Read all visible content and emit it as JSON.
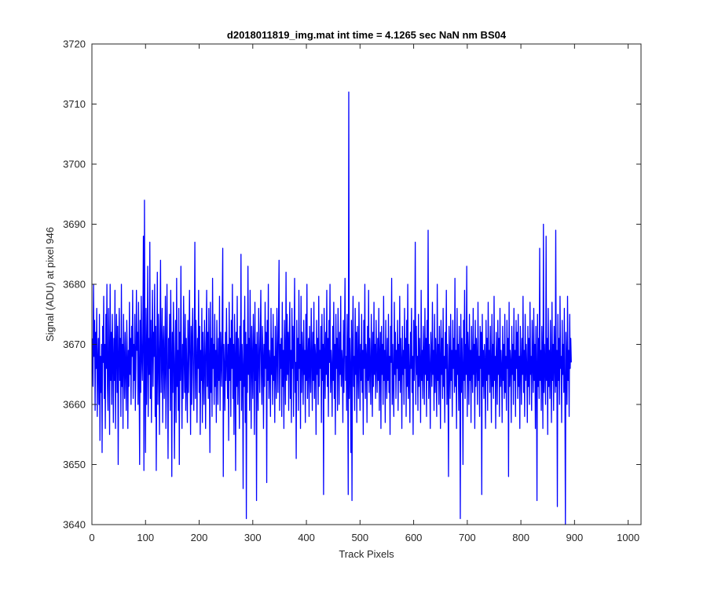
{
  "chart_data": {
    "type": "line",
    "title": "d2018011819_img.mat int time = 4.1265 sec  NaN nm BS04",
    "xlabel": "Track Pixels",
    "ylabel": "Signal (ADU) at pixel 946",
    "xlim": [
      0,
      1024
    ],
    "ylim": [
      3640,
      3720
    ],
    "xticks": [
      0,
      100,
      200,
      300,
      400,
      500,
      600,
      700,
      800,
      900,
      1000
    ],
    "yticks": [
      3640,
      3650,
      3660,
      3670,
      3680,
      3690,
      3700,
      3710,
      3720
    ],
    "grid": false,
    "line_color": "#0000ff",
    "series": [
      {
        "x_start": 1,
        "x_step": 1,
        "values_note_free": true,
        "values": [
          3671,
          3663,
          3680,
          3668,
          3674,
          3659,
          3672,
          3666,
          3676,
          3658,
          3667,
          3671,
          3660,
          3675,
          3654,
          3668,
          3662,
          3670,
          3652,
          3673,
          3667,
          3678,
          3661,
          3670,
          3656,
          3675,
          3666,
          3680,
          3663,
          3659,
          3676,
          3668,
          3655,
          3680,
          3664,
          3672,
          3660,
          3675,
          3668,
          3657,
          3671,
          3664,
          3679,
          3656,
          3669,
          3675,
          3662,
          3673,
          3650,
          3668,
          3676,
          3664,
          3671,
          3658,
          3680,
          3663,
          3670,
          3656,
          3675,
          3667,
          3661,
          3672,
          3666,
          3659,
          3674,
          3668,
          3656,
          3669,
          3663,
          3677,
          3665,
          3671,
          3660,
          3673,
          3668,
          3679,
          3661,
          3670,
          3664,
          3675,
          3659,
          3666,
          3679,
          3669,
          3672,
          3660,
          3677,
          3666,
          3650,
          3674,
          3662,
          3678,
          3668,
          3664,
          3672,
          3688,
          3649,
          3694,
          3666,
          3652,
          3676,
          3660,
          3669,
          3683,
          3658,
          3671,
          3665,
          3687,
          3661,
          3674,
          3657,
          3670,
          3679,
          3663,
          3672,
          3668,
          3680,
          3658,
          3673,
          3649,
          3666,
          3682,
          3660,
          3675,
          3669,
          3655,
          3671,
          3684,
          3662,
          3668,
          3676,
          3657,
          3670,
          3673,
          3661,
          3667,
          3678,
          3656,
          3668,
          3680,
          3664,
          3651,
          3671,
          3666,
          3675,
          3659,
          3679,
          3668,
          3648,
          3672,
          3662,
          3677,
          3668,
          3651,
          3667,
          3674,
          3657,
          3681,
          3663,
          3669,
          3659,
          3676,
          3650,
          3672,
          3664,
          3683,
          3666,
          3656,
          3670,
          3661,
          3678,
          3668,
          3662,
          3675,
          3659,
          3671,
          3665,
          3657,
          3674,
          3662,
          3669,
          3679,
          3667,
          3655,
          3673,
          3660,
          3671,
          3676,
          3665,
          3659,
          3670,
          3687,
          3661,
          3674,
          3668,
          3657,
          3671,
          3666,
          3679,
          3662,
          3673,
          3655,
          3669,
          3664,
          3676,
          3657,
          3672,
          3666,
          3660,
          3674,
          3668,
          3656,
          3670,
          3679,
          3663,
          3672,
          3661,
          3676,
          3666,
          3652,
          3677,
          3662,
          3671,
          3658,
          3681,
          3666,
          3670,
          3660,
          3675,
          3663,
          3669,
          3657,
          3674,
          3667,
          3660,
          3671,
          3664,
          3678,
          3659,
          3672,
          3668,
          3663,
          3675,
          3686,
          3648,
          3670,
          3666,
          3659,
          3672,
          3664,
          3676,
          3667,
          3661,
          3670,
          3654,
          3677,
          3664,
          3671,
          3658,
          3674,
          3666,
          3680,
          3661,
          3670,
          3655,
          3675,
          3668,
          3649,
          3672,
          3663,
          3678,
          3660,
          3671,
          3667,
          3656,
          3673,
          3664,
          3685,
          3659,
          3670,
          3666,
          3646,
          3674,
          3663,
          3678,
          3657,
          3672,
          3641,
          3670,
          3662,
          3683,
          3665,
          3671,
          3659,
          3679,
          3668,
          3656,
          3673,
          3667,
          3661,
          3675,
          3669,
          3655,
          3677,
          3664,
          3670,
          3644,
          3672,
          3666,
          3659,
          3676,
          3668,
          3662,
          3671,
          3679,
          3665,
          3660,
          3673,
          3668,
          3656,
          3670,
          3663,
          3677,
          3666,
          3672,
          3647,
          3674,
          3664,
          3680,
          3661,
          3669,
          3667,
          3658,
          3676,
          3665,
          3671,
          3660,
          3675,
          3664,
          3668,
          3657,
          3673,
          3666,
          3661,
          3676,
          3668,
          3662,
          3674,
          3684,
          3659,
          3670,
          3666,
          3671,
          3658,
          3677,
          3663,
          3669,
          3656,
          3674,
          3668,
          3660,
          3682,
          3664,
          3675,
          3665,
          3672,
          3659,
          3671,
          3677,
          3661,
          3669,
          3657,
          3676,
          3666,
          3673,
          3658,
          3670,
          3681,
          3662,
          3667,
          3651,
          3674,
          3664,
          3671,
          3659,
          3679,
          3666,
          3670,
          3656,
          3678,
          3662,
          3672,
          3668,
          3660,
          3674,
          3665,
          3669,
          3657,
          3675,
          3664,
          3680,
          3661,
          3667,
          3671,
          3658,
          3673,
          3666,
          3662,
          3676,
          3668,
          3659,
          3672,
          3664,
          3677,
          3661,
          3670,
          3668,
          3655,
          3674,
          3665,
          3671,
          3660,
          3678,
          3663,
          3669,
          3666,
          3673,
          3657,
          3675,
          3664,
          3670,
          3645,
          3676,
          3668,
          3661,
          3672,
          3665,
          3679,
          3663,
          3671,
          3658,
          3674,
          3667,
          3680,
          3662,
          3669,
          3666,
          3658,
          3673,
          3664,
          3677,
          3661,
          3670,
          3655,
          3675,
          3666,
          3671,
          3659,
          3676,
          3668,
          3660,
          3672,
          3665,
          3678,
          3663,
          3669,
          3667,
          3657,
          3674,
          3662,
          3670,
          3681,
          3664,
          3668,
          3659,
          3675,
          3666,
          3645,
          3712,
          3661,
          3671,
          3666,
          3652,
          3674,
          3644,
          3670,
          3678,
          3663,
          3668,
          3659,
          3676,
          3665,
          3672,
          3657,
          3673,
          3666,
          3661,
          3677,
          3668,
          3659,
          3670,
          3664,
          3675,
          3662,
          3669,
          3655,
          3674,
          3666,
          3680,
          3661,
          3670,
          3668,
          3657,
          3673,
          3664,
          3679,
          3662,
          3671,
          3666,
          3660,
          3675,
          3668,
          3658,
          3672,
          3663,
          3677,
          3665,
          3670,
          3661,
          3674,
          3667,
          3662,
          3671,
          3664,
          3676,
          3659,
          3668,
          3672,
          3656,
          3673,
          3665,
          3670,
          3660,
          3678,
          3664,
          3669,
          3657,
          3674,
          3666,
          3661,
          3671,
          3664,
          3675,
          3662,
          3668,
          3655,
          3673,
          3667,
          3681,
          3660,
          3670,
          3664,
          3658,
          3677,
          3665,
          3672,
          3661,
          3669,
          3666,
          3674,
          3659,
          3670,
          3664,
          3678,
          3662,
          3671,
          3667,
          3656,
          3673,
          3665,
          3669,
          3660,
          3676,
          3666,
          3671,
          3658,
          3674,
          3663,
          3680,
          3661,
          3670,
          3665,
          3657,
          3672,
          3666,
          3676,
          3662,
          3668,
          3655,
          3674,
          3664,
          3670,
          3687,
          3660,
          3673,
          3665,
          3668,
          3659,
          3675,
          3663,
          3671,
          3666,
          3657,
          3679,
          3664,
          3669,
          3661,
          3673,
          3667,
          3660,
          3676,
          3665,
          3671,
          3658,
          3674,
          3664,
          3689,
          3661,
          3670,
          3666,
          3656,
          3672,
          3668,
          3663,
          3677,
          3665,
          3669,
          3659,
          3675,
          3662,
          3671,
          3666,
          3658,
          3680,
          3664,
          3670,
          3660,
          3673,
          3667,
          3656,
          3674,
          3665,
          3671,
          3661,
          3676,
          3663,
          3668,
          3657,
          3672,
          3666,
          3679,
          3660,
          3670,
          3664,
          3648,
          3673,
          3667,
          3661,
          3675,
          3664,
          3669,
          3658,
          3674,
          3666,
          3671,
          3662,
          3681,
          3663,
          3669,
          3656,
          3676,
          3665,
          3670,
          3659,
          3673,
          3667,
          3641,
          3675,
          3662,
          3671,
          3666,
          3650,
          3674,
          3664,
          3679,
          3661,
          3670,
          3665,
          3683,
          3658,
          3672,
          3668,
          3660,
          3675,
          3664,
          3669,
          3657,
          3673,
          3666,
          3662,
          3676,
          3665,
          3670,
          3656,
          3674,
          3663,
          3671,
          3667,
          3660,
          3677,
          3664,
          3668,
          3658,
          3673,
          3666,
          3672,
          3645,
          3675,
          3663,
          3669,
          3661,
          3670,
          3667,
          3656,
          3674,
          3664,
          3671,
          3659,
          3677,
          3665,
          3669,
          3662,
          3673,
          3666,
          3657,
          3675,
          3663,
          3670,
          3661,
          3678,
          3664,
          3668,
          3656,
          3672,
          3667,
          3660,
          3674,
          3665,
          3671,
          3658,
          3676,
          3663,
          3669,
          3666,
          3657,
          3673,
          3664,
          3670,
          3661,
          3675,
          3662,
          3668,
          3659,
          3674,
          3666,
          3671,
          3648,
          3677,
          3663,
          3669,
          3667,
          3657,
          3673,
          3665,
          3670,
          3660,
          3676,
          3664,
          3669,
          3658,
          3674,
          3666,
          3672,
          3661,
          3675,
          3663,
          3668,
          3656,
          3673,
          3667,
          3660,
          3671,
          3665,
          3678,
          3662,
          3669,
          3658,
          3675,
          3664,
          3670,
          3666,
          3657,
          3673,
          3663,
          3671,
          3660,
          3677,
          3665,
          3668,
          3659,
          3674,
          3667,
          3662,
          3676,
          3664,
          3670,
          3656,
          3673,
          3666,
          3644,
          3675,
          3663,
          3671,
          3661,
          3686,
          3664,
          3669,
          3659,
          3673,
          3667,
          3656,
          3690,
          3662,
          3670,
          3666,
          3660,
          3688,
          3664,
          3671,
          3655,
          3676,
          3663,
          3669,
          3661,
          3674,
          3666,
          3657,
          3677,
          3664,
          3670,
          3659,
          3673,
          3667,
          3662,
          3689,
          3663,
          3669,
          3643,
          3675,
          3664,
          3671,
          3660,
          3678,
          3666,
          3668,
          3657,
          3674,
          3665,
          3670,
          3662,
          3676,
          3663,
          3640,
          3672,
          3667,
          3660,
          3678,
          3664,
          3669,
          3658,
          3675,
          3666,
          3671,
          3667
        ]
      }
    ]
  }
}
